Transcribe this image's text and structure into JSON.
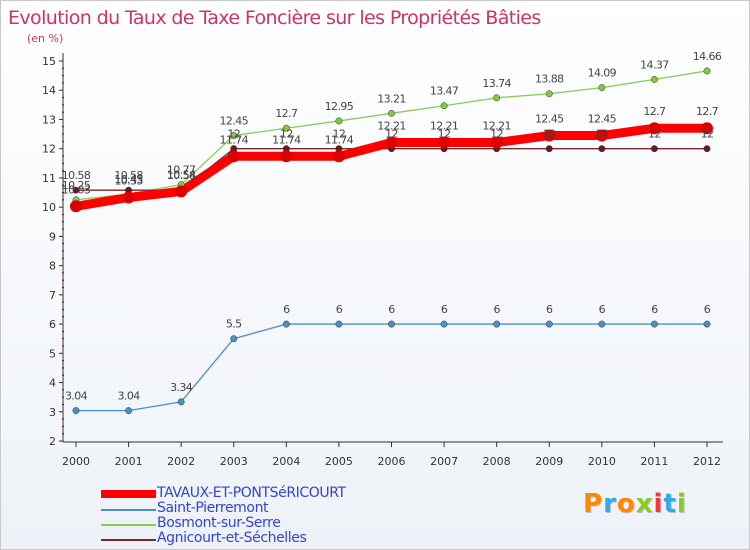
{
  "chart_data": {
    "type": "line",
    "title": "Evolution du Taux de Taxe Foncière sur les Propriétés Bâties",
    "ylabel": "(en %)",
    "xlabel": "",
    "ylim": [
      2,
      15
    ],
    "y_ticks": [
      "2",
      "3",
      "4",
      "5",
      "6",
      "7",
      "8",
      "9",
      "10",
      "11",
      "12",
      "13",
      "14",
      "15"
    ],
    "grid": false,
    "legend_position": "bottom-left",
    "x": [
      "2000",
      "2001",
      "2002",
      "2003",
      "2004",
      "2005",
      "2006",
      "2007",
      "2008",
      "2009",
      "2010",
      "2011",
      "2012"
    ],
    "series": [
      {
        "name": "Saint-Pierremont",
        "color": "#4a8fc8",
        "marker": "#4a8fc8",
        "values": [
          3.04,
          3.04,
          3.34,
          5.5,
          6,
          6,
          6,
          6,
          6,
          6,
          6,
          6,
          6
        ],
        "labels": [
          "3.04",
          "3.04",
          "3.34",
          "5.5",
          "6",
          "6",
          "6",
          "6",
          "6",
          "6",
          "6",
          "6",
          "6"
        ]
      },
      {
        "name": "Bosmont-sur-Serre",
        "color": "#88cc55",
        "marker": "#7ccc3c",
        "values": [
          10.25,
          10.45,
          10.77,
          12.45,
          12.7,
          12.95,
          13.21,
          13.47,
          13.74,
          13.88,
          14.09,
          14.37,
          14.66
        ],
        "labels": [
          "10.25",
          "10.45",
          "10.77",
          "12.45",
          "12.7",
          "12.95",
          "13.21",
          "13.47",
          "13.74",
          "13.88",
          "14.09",
          "14.37",
          "14.66"
        ]
      },
      {
        "name": "Agnicourt-et-Séchelles",
        "color": "#7a2a2a",
        "marker": "#6a1a1a",
        "values": [
          10.58,
          10.58,
          10.58,
          12,
          12,
          12,
          12,
          12,
          12,
          12,
          12,
          12,
          12
        ],
        "labels": [
          "10.58",
          "10.58",
          "10.58",
          "12",
          "12",
          "12",
          "12",
          "12",
          "12",
          "12",
          "12",
          "12",
          "12"
        ]
      },
      {
        "name": "TAVAUX-ET-PONTSéRICOURT",
        "color": "#ff0000",
        "marker": "#dd0000",
        "values": [
          10.03,
          10.33,
          10.54,
          11.74,
          11.74,
          11.74,
          12.21,
          12.21,
          12.21,
          12.45,
          12.45,
          12.7,
          12.7
        ],
        "labels": [
          "10.03",
          "10.33",
          "10.54",
          "11.74",
          "11.74",
          "11.74",
          "12.21",
          "12.21",
          "12.21",
          "12.45",
          "12.45",
          "12.7",
          "12.7"
        ]
      }
    ]
  },
  "legend": [
    {
      "label": "TAVAUX-ET-PONTSéRICOURT",
      "color": "#ff0000",
      "thick": true
    },
    {
      "label": "Saint-Pierremont",
      "color": "#4a8fc8",
      "thick": false
    },
    {
      "label": "Bosmont-sur-Serre",
      "color": "#88cc55",
      "thick": false
    },
    {
      "label": "Agnicourt-et-Séchelles",
      "color": "#7a2a2a",
      "thick": false
    }
  ],
  "logo": {
    "text": "Proxiti",
    "colors": [
      "#ff8800",
      "#33aaee",
      "#ff8800",
      "#88cc22",
      "#ff3333",
      "#33aaee",
      "#88cc22"
    ]
  }
}
